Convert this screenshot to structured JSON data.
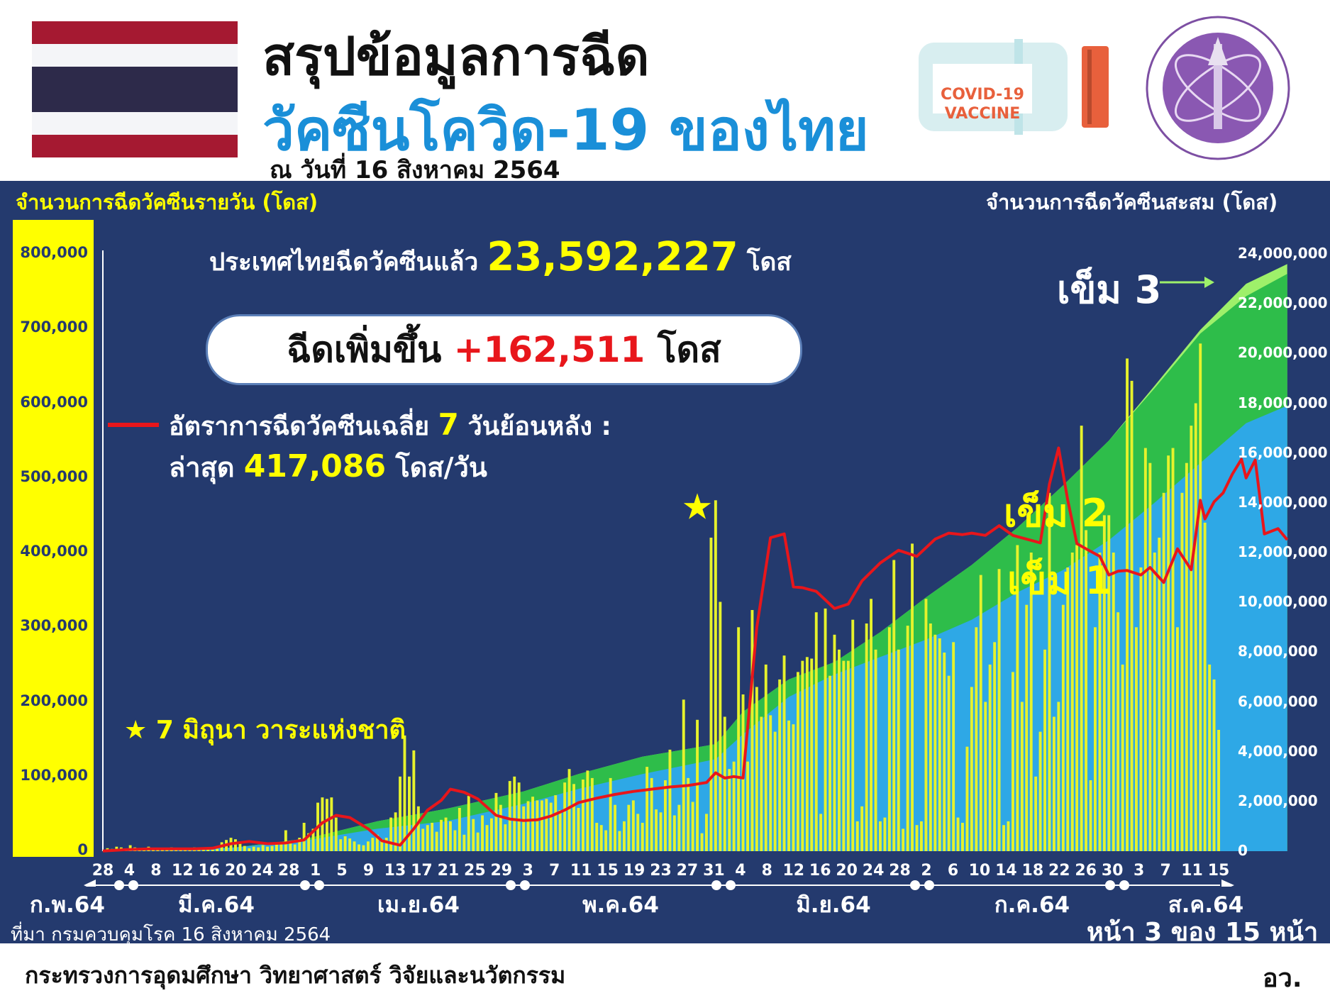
{
  "header": {
    "title_line1": "สรุปข้อมูลการฉีด",
    "title_line2": "วัคซีนโควิด-19 ของไทย",
    "date_line": "ณ วันที่ 16 สิงหาคม 2564",
    "vaccine_logo_text_1": "COVID-19",
    "vaccine_logo_text_2": "VACCINE"
  },
  "summary": {
    "total_prefix": "ประเทศไทยฉีดวัคซีนแล้ว",
    "total_value": "23,592,227",
    "total_unit": "โดส",
    "increase_prefix": "ฉีดเพิ่มขึ้น",
    "increase_value": "+162,511",
    "increase_unit": "โดส",
    "avg_label_prefix": "อัตราการฉีดวัคซีนเฉลี่ย",
    "avg_days": "7",
    "avg_label_suffix": "วันย้อนหลัง :",
    "latest_label": "ล่าสุด",
    "latest_value": "417,086",
    "latest_unit": "โดส/วัน"
  },
  "colors": {
    "background": "#243a6e",
    "bars": "#e6f22c",
    "dose1": "#2ea8e6",
    "dose2": "#2ebd4a",
    "dose3": "#9ef06a",
    "avg_line": "#e8161b",
    "left_axis_band": "#ffff00"
  },
  "chart_data": {
    "type": "bar",
    "left_axis_title": "จำนวนการฉีดวัคซีนรายวัน (โดส)",
    "right_axis_title": "จำนวนการฉีดวัคซีนสะสม (โดส)",
    "left_ticks": [
      "0",
      "100,000",
      "200,000",
      "300,000",
      "400,000",
      "500,000",
      "600,000",
      "700,000",
      "800,000"
    ],
    "right_ticks": [
      "0",
      "2,000,000",
      "4,000,000",
      "6,000,000",
      "8,000,000",
      "10,000,000",
      "12,000,000",
      "14,000,000",
      "16,000,000",
      "18,000,000",
      "20,000,000",
      "22,000,000",
      "24,000,000"
    ],
    "ylim_left": [
      0,
      800000
    ],
    "ylim_right": [
      0,
      24000000
    ],
    "x_ticks": [
      "28",
      "4",
      "8",
      "12",
      "16",
      "20",
      "24",
      "28",
      "1",
      "5",
      "9",
      "13",
      "17",
      "21",
      "25",
      "29",
      "3",
      "7",
      "11",
      "15",
      "19",
      "23",
      "27",
      "31",
      "4",
      "8",
      "12",
      "16",
      "20",
      "24",
      "28",
      "2",
      "6",
      "10",
      "14",
      "18",
      "22",
      "26",
      "30",
      "3",
      "7",
      "11",
      "15"
    ],
    "months": [
      "ก.พ.64",
      "มี.ค.64",
      "เม.ย.64",
      "พ.ค.64",
      "มิ.ย.64",
      "ก.ค.64",
      "ส.ค.64"
    ],
    "x_start": "2021-02-28",
    "x_end": "2021-08-15",
    "daily_doses": [
      200,
      4000,
      3000,
      6000,
      5000,
      3000,
      8000,
      5000,
      4000,
      3000,
      6000,
      3000,
      2000,
      4000,
      3000,
      5000,
      2000,
      4000,
      3000,
      4000,
      5000,
      3000,
      3000,
      4000,
      2000,
      3000,
      12000,
      15000,
      18000,
      16000,
      12000,
      7000,
      4000,
      6000,
      5000,
      8000,
      6000,
      7000,
      9000,
      12000,
      28000,
      14000,
      9000,
      18000,
      38000,
      24000,
      30000,
      65000,
      72000,
      70000,
      72000,
      45000,
      16000,
      20000,
      17000,
      13000,
      9000,
      8000,
      13000,
      18000,
      22000,
      16000,
      18000,
      45000,
      52000,
      100000,
      155000,
      100000,
      135000,
      60000,
      30000,
      35000,
      38000,
      26000,
      42000,
      45000,
      40000,
      28000,
      58000,
      22000,
      74000,
      43000,
      25000,
      48000,
      35000,
      44000,
      78000,
      62000,
      36000,
      94000,
      100000,
      92000,
      60000,
      67000,
      73000,
      68000,
      68000,
      70000,
      65000,
      75000,
      55000,
      92000,
      110000,
      90000,
      58000,
      96000,
      108000,
      98000,
      38000,
      35000,
      28000,
      98000,
      62000,
      27000,
      40000,
      62000,
      68000,
      50000,
      38000,
      113000,
      98000,
      56000,
      52000,
      95000,
      136000,
      48000,
      62000,
      203000,
      98000,
      66000,
      176000,
      24000,
      50000,
      420000,
      470000,
      334000,
      180000,
      110000,
      120000,
      300000,
      210000,
      120000,
      323000,
      220000,
      180000,
      250000,
      182000,
      160000,
      230000,
      262000,
      175000,
      170000,
      240000,
      255000,
      260000,
      258000,
      320000,
      50000,
      325000,
      235000,
      290000,
      270000,
      255000,
      255000,
      310000,
      40000,
      60000,
      305000,
      338000,
      270000,
      40000,
      45000,
      300000,
      390000,
      270000,
      30000,
      302000,
      412000,
      35000,
      40000,
      338000,
      305000,
      290000,
      285000,
      266000,
      235000,
      280000,
      45000,
      38000,
      140000,
      220000,
      300000,
      370000,
      200000,
      250000,
      280000,
      378000,
      35000,
      40000,
      240000,
      410000,
      200000,
      330000,
      400000,
      100000,
      160000,
      270000,
      480000,
      180000,
      200000,
      330000,
      380000,
      400000,
      410000,
      570000,
      430000,
      95000,
      300000,
      400000,
      450000,
      450000,
      400000,
      320000,
      250000,
      660000,
      630000,
      300000,
      380000,
      540000,
      520000,
      400000,
      420000,
      480000,
      530000,
      540000,
      300000,
      480000,
      520000,
      570000,
      600000,
      680000,
      440000,
      250000,
      230000,
      162511
    ],
    "seven_day_avg": [
      [
        0,
        200
      ],
      [
        5,
        2000
      ],
      [
        10,
        3000
      ],
      [
        15,
        3000
      ],
      [
        20,
        3000
      ],
      [
        24,
        4000
      ],
      [
        28,
        10000
      ],
      [
        32,
        13000
      ],
      [
        36,
        10000
      ],
      [
        40,
        11000
      ],
      [
        44,
        15000
      ],
      [
        48,
        38000
      ],
      [
        51,
        48000
      ],
      [
        54,
        45000
      ],
      [
        58,
        30000
      ],
      [
        61,
        14000
      ],
      [
        65,
        8000
      ],
      [
        68,
        30000
      ],
      [
        71,
        55000
      ],
      [
        74,
        68000
      ],
      [
        76,
        83000
      ],
      [
        79,
        79000
      ],
      [
        82,
        70000
      ],
      [
        86,
        48000
      ],
      [
        89,
        43000
      ],
      [
        92,
        41000
      ],
      [
        95,
        42000
      ],
      [
        98,
        47000
      ],
      [
        101,
        55000
      ],
      [
        104,
        65000
      ],
      [
        108,
        71000
      ],
      [
        112,
        76000
      ],
      [
        116,
        80000
      ],
      [
        120,
        83000
      ],
      [
        124,
        86000
      ],
      [
        128,
        88000
      ],
      [
        132,
        92000
      ],
      [
        134,
        105000
      ],
      [
        136,
        98000
      ],
      [
        138,
        100000
      ],
      [
        140,
        98000
      ],
      [
        143,
        300000
      ],
      [
        146,
        420000
      ],
      [
        149,
        425000
      ],
      [
        151,
        354000
      ],
      [
        153,
        353000
      ],
      [
        156,
        348000
      ],
      [
        160,
        325000
      ],
      [
        163,
        331000
      ],
      [
        166,
        362000
      ],
      [
        170,
        386000
      ],
      [
        174,
        403000
      ],
      [
        178,
        395000
      ],
      [
        182,
        418000
      ],
      [
        185,
        426000
      ],
      [
        188,
        424000
      ],
      [
        190,
        426000
      ],
      [
        193,
        423000
      ],
      [
        196,
        436000
      ],
      [
        199,
        423000
      ],
      [
        202,
        418000
      ],
      [
        205,
        413000
      ],
      [
        207,
        492000
      ],
      [
        209,
        540000
      ],
      [
        211,
        470000
      ],
      [
        213,
        412000
      ],
      [
        215,
        405000
      ],
      [
        218,
        395000
      ],
      [
        220,
        370000
      ],
      [
        222,
        375000
      ],
      [
        224,
        376000
      ],
      [
        227,
        370000
      ],
      [
        229,
        380000
      ],
      [
        232,
        360000
      ],
      [
        235,
        405000
      ],
      [
        238,
        377000
      ],
      [
        240,
        470000
      ],
      [
        241,
        445000
      ],
      [
        243,
        468000
      ],
      [
        245,
        480000
      ],
      [
        247,
        505000
      ],
      [
        249,
        525000
      ],
      [
        250,
        500000
      ],
      [
        252,
        524000
      ],
      [
        254,
        425000
      ],
      [
        257,
        432000
      ],
      [
        259,
        417086
      ]
    ],
    "cumulative_dose1": [
      [
        0,
        0
      ],
      [
        14,
        30000
      ],
      [
        29,
        150000
      ],
      [
        45,
        450000
      ],
      [
        60,
        900000
      ],
      [
        75,
        1200000
      ],
      [
        92,
        1900000
      ],
      [
        104,
        2500000
      ],
      [
        118,
        3100000
      ],
      [
        134,
        3700000
      ],
      [
        140,
        4700000
      ],
      [
        150,
        6200000
      ],
      [
        160,
        7100000
      ],
      [
        170,
        7800000
      ],
      [
        180,
        8500000
      ],
      [
        190,
        9300000
      ],
      [
        200,
        10400000
      ],
      [
        210,
        11300000
      ],
      [
        220,
        12500000
      ],
      [
        230,
        14000000
      ],
      [
        240,
        15600000
      ],
      [
        250,
        17200000
      ],
      [
        259,
        17900000
      ]
    ],
    "cumulative_dose2": [
      [
        0,
        0
      ],
      [
        14,
        30000
      ],
      [
        29,
        150000
      ],
      [
        45,
        520000
      ],
      [
        60,
        1200000
      ],
      [
        75,
        1700000
      ],
      [
        92,
        2400000
      ],
      [
        104,
        3100000
      ],
      [
        118,
        3800000
      ],
      [
        134,
        4300000
      ],
      [
        140,
        5600000
      ],
      [
        150,
        6900000
      ],
      [
        160,
        7600000
      ],
      [
        170,
        8800000
      ],
      [
        180,
        10200000
      ],
      [
        190,
        11500000
      ],
      [
        200,
        13000000
      ],
      [
        210,
        14700000
      ],
      [
        220,
        16500000
      ],
      [
        230,
        18600000
      ],
      [
        240,
        20800000
      ],
      [
        250,
        22300000
      ],
      [
        259,
        23200000
      ]
    ],
    "cumulative_dose3": [
      [
        0,
        0
      ],
      [
        14,
        30000
      ],
      [
        29,
        150000
      ],
      [
        45,
        520000
      ],
      [
        60,
        1200000
      ],
      [
        75,
        1700000
      ],
      [
        92,
        2400000
      ],
      [
        104,
        3100000
      ],
      [
        118,
        3800000
      ],
      [
        134,
        4300000
      ],
      [
        140,
        5600000
      ],
      [
        150,
        6900000
      ],
      [
        160,
        7600000
      ],
      [
        170,
        8800000
      ],
      [
        180,
        10200000
      ],
      [
        190,
        11500000
      ],
      [
        200,
        13000000
      ],
      [
        210,
        14700000
      ],
      [
        220,
        16500000
      ],
      [
        230,
        18700000
      ],
      [
        240,
        20950000
      ],
      [
        250,
        22800000
      ],
      [
        259,
        23592227
      ]
    ]
  },
  "legend": {
    "dose3": "เข็ม 3",
    "dose2": "เข็ม 2",
    "dose1": "เข็ม 1",
    "star_note": "7 มิถุนา วาระแห่งชาติ"
  },
  "footer": {
    "source": "ที่มา กรมควบคุมโรค 16 สิงหาคม 2564",
    "page": "หน้า 3 ของ 15 หน้า",
    "ministry": "กระทรวงการอุดมศึกษา วิทยาศาสตร์ วิจัยและนวัตกรรม",
    "ministry_abbr": "อว."
  }
}
